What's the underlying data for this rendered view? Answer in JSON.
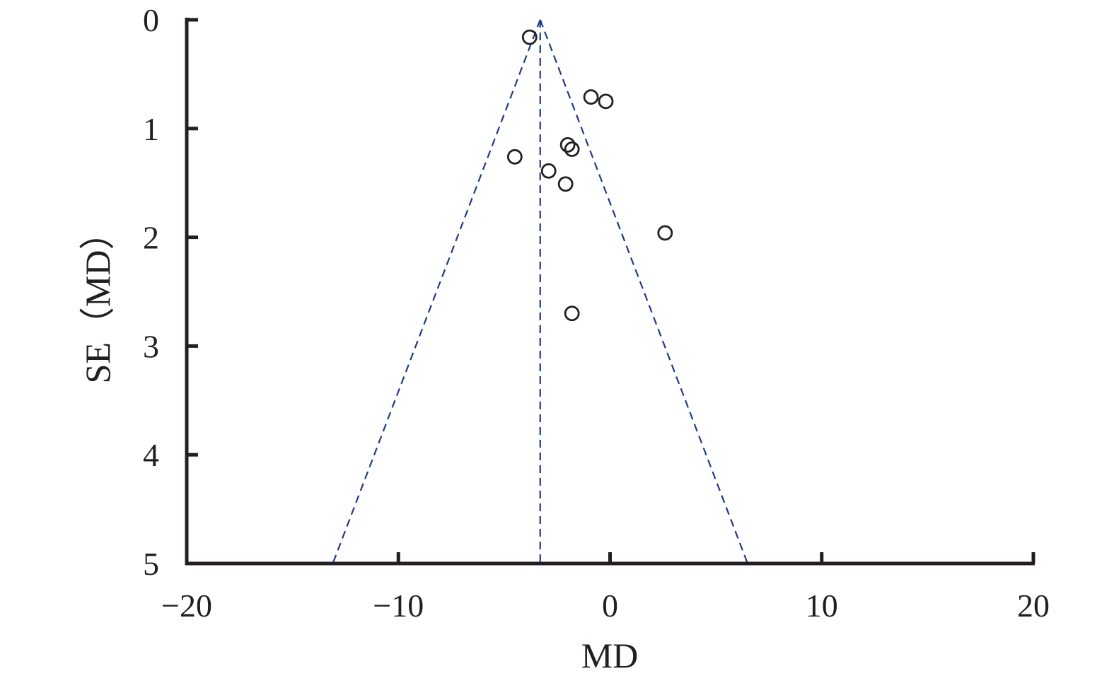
{
  "chart_data": {
    "type": "scatter",
    "subtype": "funnel-plot",
    "title": "",
    "xlabel": "MD",
    "ylabel": "SE（MD）",
    "xlim": [
      -20,
      20
    ],
    "ylim": [
      0,
      5
    ],
    "y_inverted": true,
    "x_ticks": [
      -20,
      -10,
      0,
      10,
      20
    ],
    "x_tick_labels": [
      "−20",
      "−10",
      "0",
      "10",
      "20"
    ],
    "y_ticks": [
      0,
      1,
      2,
      3,
      4,
      5
    ],
    "y_tick_labels": [
      "0",
      "1",
      "2",
      "3",
      "4",
      "5"
    ],
    "grid": false,
    "legend": "none",
    "pooled_estimate": -3.3,
    "funnel_limits": {
      "apex": {
        "x": -3.3,
        "y": 0
      },
      "base_left": {
        "x": -13.1,
        "y": 5
      },
      "base_right": {
        "x": 6.5,
        "y": 5
      }
    },
    "points": [
      {
        "x": -3.8,
        "y": 0.16
      },
      {
        "x": -0.9,
        "y": 0.71
      },
      {
        "x": -0.2,
        "y": 0.75
      },
      {
        "x": -2.0,
        "y": 1.15
      },
      {
        "x": -1.8,
        "y": 1.19
      },
      {
        "x": -4.5,
        "y": 1.26
      },
      {
        "x": -2.9,
        "y": 1.39
      },
      {
        "x": -2.1,
        "y": 1.51
      },
      {
        "x": 2.6,
        "y": 1.96
      },
      {
        "x": -1.8,
        "y": 2.7
      }
    ],
    "colors": {
      "axis": "#231f20",
      "markers": "#231f20",
      "funnel_lines": "#1f3a8a"
    }
  }
}
